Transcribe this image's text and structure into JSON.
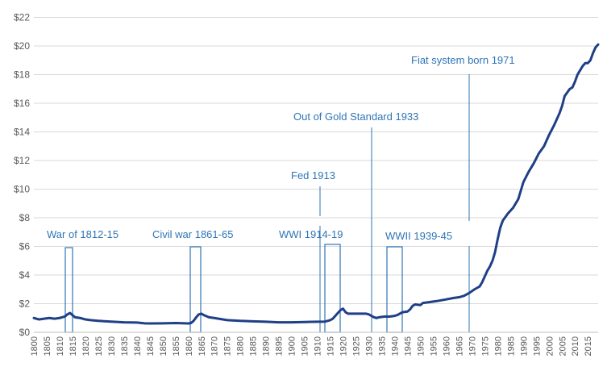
{
  "chart_data": {
    "type": "line",
    "title": "",
    "xlabel": "",
    "ylabel": "",
    "xlim": [
      1800,
      2019
    ],
    "ylim": [
      0,
      22
    ],
    "grid": true,
    "legend": "none",
    "line_color": "#1f3f86",
    "annotation_color": "#2e75b6",
    "y_ticks": [
      {
        "value": 0,
        "label": "$0"
      },
      {
        "value": 2,
        "label": "$2"
      },
      {
        "value": 4,
        "label": "$4"
      },
      {
        "value": 6,
        "label": "$6"
      },
      {
        "value": 8,
        "label": "$8"
      },
      {
        "value": 10,
        "label": "$10"
      },
      {
        "value": 12,
        "label": "$12"
      },
      {
        "value": 14,
        "label": "$14"
      },
      {
        "value": 16,
        "label": "$16"
      },
      {
        "value": 18,
        "label": "$18"
      },
      {
        "value": 20,
        "label": "$20"
      },
      {
        "value": 22,
        "label": "$22"
      }
    ],
    "x_ticks": [
      {
        "value": 1800,
        "label": "1800"
      },
      {
        "value": 1805,
        "label": "1805"
      },
      {
        "value": 1810,
        "label": "1810"
      },
      {
        "value": 1815,
        "label": "1815"
      },
      {
        "value": 1820,
        "label": "1820"
      },
      {
        "value": 1825,
        "label": "1825"
      },
      {
        "value": 1830,
        "label": "1830"
      },
      {
        "value": 1835,
        "label": "1835"
      },
      {
        "value": 1840,
        "label": "1840"
      },
      {
        "value": 1845,
        "label": "1845"
      },
      {
        "value": 1850,
        "label": "1850"
      },
      {
        "value": 1855,
        "label": "1855"
      },
      {
        "value": 1860,
        "label": "1860"
      },
      {
        "value": 1865,
        "label": "1865"
      },
      {
        "value": 1870,
        "label": "1870"
      },
      {
        "value": 1875,
        "label": "1875"
      },
      {
        "value": 1880,
        "label": "1880"
      },
      {
        "value": 1885,
        "label": "1885"
      },
      {
        "value": 1890,
        "label": "1890"
      },
      {
        "value": 1895,
        "label": "1895"
      },
      {
        "value": 1900,
        "label": "1900"
      },
      {
        "value": 1905,
        "label": "1905"
      },
      {
        "value": 1910,
        "label": "1910"
      },
      {
        "value": 1915,
        "label": "1915"
      },
      {
        "value": 1920,
        "label": "1920"
      },
      {
        "value": 1925,
        "label": "1925"
      },
      {
        "value": 1930,
        "label": "1930"
      },
      {
        "value": 1935,
        "label": "1935"
      },
      {
        "value": 1940,
        "label": "1940"
      },
      {
        "value": 1945,
        "label": "1945"
      },
      {
        "value": 1950,
        "label": "1950"
      },
      {
        "value": 1955,
        "label": "1955"
      },
      {
        "value": 1960,
        "label": "1960"
      },
      {
        "value": 1965,
        "label": "1965"
      },
      {
        "value": 1970,
        "label": "1970"
      },
      {
        "value": 1975,
        "label": "1975"
      },
      {
        "value": 1980,
        "label": "1980"
      },
      {
        "value": 1985,
        "label": "1985"
      },
      {
        "value": 1990,
        "label": "1990"
      },
      {
        "value": 1995,
        "label": "1995"
      },
      {
        "value": 2000,
        "label": "2000"
      },
      {
        "value": 2005,
        "label": "2005"
      },
      {
        "value": 2010,
        "label": "2010"
      },
      {
        "value": 2015,
        "label": "2015"
      }
    ],
    "series": [
      {
        "x": [
          1800,
          1802,
          1804,
          1806,
          1808,
          1810,
          1812,
          1813,
          1814,
          1815,
          1816,
          1818,
          1820,
          1822,
          1825,
          1830,
          1835,
          1840,
          1843,
          1845,
          1850,
          1855,
          1860,
          1861,
          1862,
          1863,
          1864,
          1865,
          1866,
          1868,
          1870,
          1875,
          1880,
          1885,
          1890,
          1895,
          1900,
          1905,
          1910,
          1913,
          1914,
          1915,
          1916,
          1917,
          1918,
          1919,
          1920,
          1921,
          1922,
          1925,
          1929,
          1930,
          1931,
          1932,
          1933,
          1934,
          1936,
          1938,
          1940,
          1941,
          1942,
          1943,
          1945,
          1946,
          1947,
          1948,
          1950,
          1951,
          1953,
          1955,
          1957,
          1960,
          1963,
          1965,
          1967,
          1969,
          1971,
          1973,
          1974,
          1975,
          1976,
          1977,
          1978,
          1979,
          1980,
          1981,
          1982,
          1984,
          1985,
          1986,
          1988,
          1990,
          1992,
          1994,
          1996,
          1998,
          2000,
          2002,
          2004,
          2005,
          2006,
          2008,
          2009,
          2010,
          2011,
          2012,
          2013,
          2014,
          2015,
          2016,
          2017,
          2018,
          2019
        ],
        "values": [
          1.0,
          0.9,
          0.95,
          1.0,
          0.95,
          1.0,
          1.1,
          1.25,
          1.35,
          1.2,
          1.05,
          1.0,
          0.9,
          0.85,
          0.8,
          0.75,
          0.7,
          0.68,
          0.63,
          0.62,
          0.63,
          0.65,
          0.62,
          0.65,
          0.8,
          1.05,
          1.25,
          1.3,
          1.2,
          1.05,
          1.0,
          0.85,
          0.8,
          0.77,
          0.74,
          0.7,
          0.7,
          0.72,
          0.74,
          0.75,
          0.8,
          0.85,
          0.95,
          1.15,
          1.35,
          1.55,
          1.65,
          1.4,
          1.3,
          1.3,
          1.3,
          1.25,
          1.15,
          1.05,
          1.0,
          1.05,
          1.1,
          1.1,
          1.15,
          1.2,
          1.3,
          1.4,
          1.45,
          1.6,
          1.85,
          1.95,
          1.9,
          2.05,
          2.1,
          2.15,
          2.2,
          2.3,
          2.4,
          2.45,
          2.55,
          2.75,
          3.0,
          3.2,
          3.5,
          3.9,
          4.3,
          4.6,
          5.0,
          5.6,
          6.5,
          7.3,
          7.8,
          8.3,
          8.5,
          8.7,
          9.3,
          10.5,
          11.2,
          11.8,
          12.5,
          13.0,
          13.8,
          14.5,
          15.3,
          15.8,
          16.5,
          17.0,
          17.1,
          17.5,
          18.0,
          18.3,
          18.6,
          18.8,
          18.8,
          19.0,
          19.5,
          19.9,
          20.1
        ]
      }
    ],
    "annotations": [
      {
        "label": "War of 1812-15",
        "year": 1812
      },
      {
        "label": "Civil war 1861-65",
        "year": 1861
      },
      {
        "label": "Fed 1913",
        "year": 1913
      },
      {
        "label": "WWI 1914-19",
        "year": 1914
      },
      {
        "label": "Out of Gold Standard 1933",
        "year": 1933
      },
      {
        "label": "WWII 1939-45",
        "year": 1939
      },
      {
        "label": "Fiat system born 1971",
        "year": 1971
      }
    ]
  }
}
